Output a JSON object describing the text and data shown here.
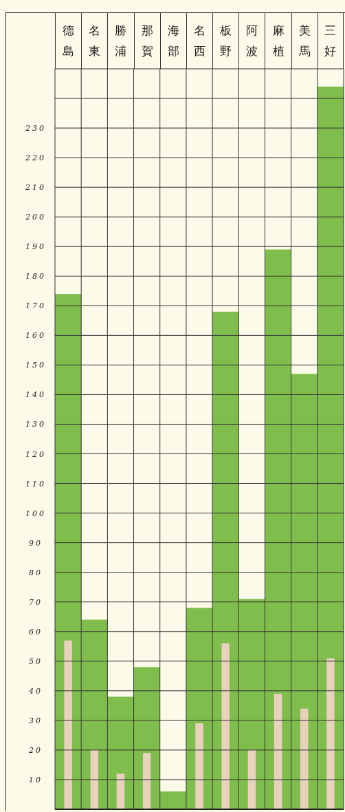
{
  "chart_data": {
    "type": "bar",
    "categories": [
      "德島",
      "名東",
      "勝浦",
      "那賀",
      "海部",
      "名西",
      "板野",
      "阿波",
      "麻植",
      "美馬",
      "三好"
    ],
    "series": [
      {
        "color": "#7fbd4c",
        "values": [
          174,
          64,
          38,
          48,
          6,
          68,
          168,
          71,
          189,
          147,
          244
        ]
      },
      {
        "color": "#e8d2bd",
        "values": [
          57,
          20,
          12,
          19,
          null,
          29,
          56,
          20,
          39,
          34,
          51
        ]
      }
    ],
    "ylim": [
      0,
      250
    ],
    "yticks": [
      10,
      20,
      30,
      40,
      50,
      60,
      70,
      80,
      90,
      100,
      110,
      120,
      130,
      140,
      150,
      160,
      170,
      180,
      190,
      200,
      210,
      220,
      230,
      {
        "value": 240,
        "label": null
      }
    ],
    "grid": true
  }
}
